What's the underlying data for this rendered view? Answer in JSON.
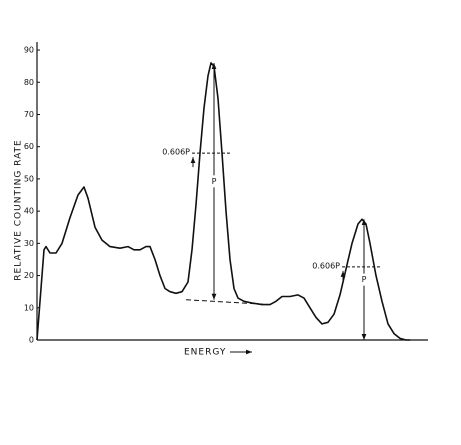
{
  "chart_data": {
    "type": "line",
    "y_label": "RELATIVE COUNTING RATE",
    "x_label": "ENERGY",
    "xlim": [
      0,
      391
    ],
    "ylim": [
      0,
      92.5
    ],
    "yticks": [
      0,
      10,
      20,
      30,
      40,
      50,
      60,
      70,
      80,
      90
    ],
    "color": "#111111",
    "x": [
      0,
      7,
      9,
      13,
      19,
      25,
      33,
      41,
      47,
      51,
      58,
      65,
      73,
      83,
      91,
      97,
      103,
      109,
      113,
      118,
      123,
      128,
      133,
      139,
      145,
      151,
      155,
      159,
      163,
      167,
      171,
      174,
      177,
      181,
      185,
      189,
      193,
      197,
      201,
      207,
      215,
      225,
      233,
      239,
      245,
      253,
      261,
      267,
      273,
      279,
      285,
      291,
      297,
      303,
      309,
      315,
      321,
      325,
      329,
      333,
      339,
      345,
      351,
      357,
      363,
      369,
      373
    ],
    "values": [
      0,
      28,
      29,
      27,
      27,
      30,
      38,
      45,
      47.5,
      44,
      35,
      31,
      29,
      28.5,
      29,
      28,
      28,
      29,
      29,
      25,
      20,
      16,
      15,
      14.5,
      15,
      18,
      28,
      42,
      58,
      72,
      82,
      86,
      85,
      75,
      58,
      40,
      25,
      16,
      13,
      12,
      11.5,
      11,
      11,
      12,
      13.5,
      13.5,
      14,
      13,
      10,
      7,
      5,
      5.5,
      8,
      14,
      22,
      30,
      36,
      37.5,
      36,
      30,
      20,
      12,
      5,
      2,
      0.5,
      0,
      0
    ],
    "baseline": {
      "x": [
        149,
        233
      ],
      "y": [
        12.5,
        11
      ]
    },
    "annotations": [
      {
        "text": "0.606P",
        "peak_label": "P",
        "x": 177,
        "peak": 86,
        "base": 12.5,
        "level": 58,
        "x_from": 155,
        "x_to": 193
      },
      {
        "text": "0.606P",
        "peak_label": "P",
        "x": 327,
        "peak": 37.5,
        "base": 0,
        "level": 22.7,
        "x_from": 305,
        "x_to": 345
      }
    ]
  }
}
